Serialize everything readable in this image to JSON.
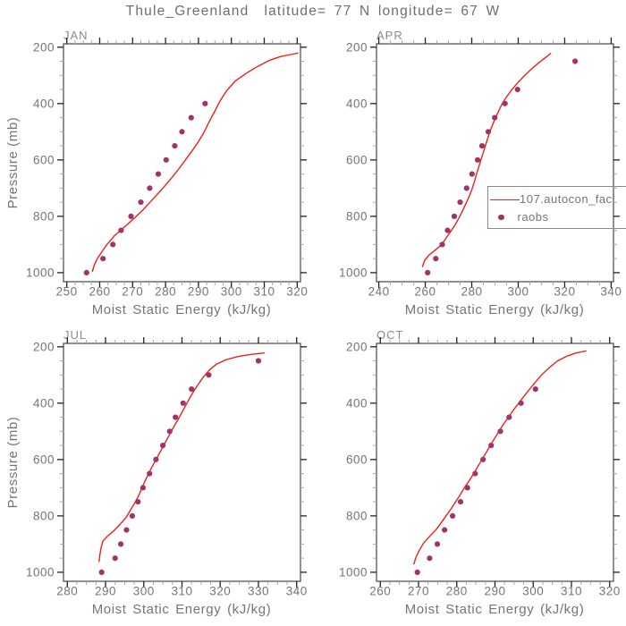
{
  "title": "Thule_Greenland  latitude= 77 N longitude= 67 W",
  "xlabel": "Moist Static Energy (kJ/kg)",
  "ylabel": "Pressure (mb)",
  "colors": {
    "model_line": "#ee2018",
    "raobs_dot": "#a23368",
    "frame": "#454545",
    "major_tick": "#222222",
    "minor_tick": "#a6a6a6",
    "label_text": "#757575"
  },
  "legend": {
    "entries": [
      {
        "label": "107.autocon_fac",
        "marker": "line"
      },
      {
        "label": "raobs",
        "marker": "dot"
      }
    ]
  },
  "chart_data": [
    {
      "panel": "JAN",
      "type": "line",
      "xlabel": "Moist Static Energy (kJ/kg)",
      "ylabel": "Pressure (mb)",
      "xlim": [
        249,
        321
      ],
      "xticks": [
        250,
        260,
        270,
        280,
        290,
        300,
        310,
        320
      ],
      "x_minor_step": 2.5,
      "ylim": [
        1032,
        188
      ],
      "yticks": [
        200,
        400,
        600,
        800,
        1000
      ],
      "y_minor_step": 50,
      "series": [
        {
          "name": "107.autocon_fac",
          "style": "line",
          "points": [
            [
              257.8,
              995
            ],
            [
              258.3,
              975
            ],
            [
              259.2,
              952
            ],
            [
              260.4,
              930
            ],
            [
              262.2,
              900
            ],
            [
              264.5,
              869
            ],
            [
              267.6,
              837
            ],
            [
              270.3,
              809
            ],
            [
              273.1,
              778
            ],
            [
              275.8,
              744
            ],
            [
              278.6,
              708
            ],
            [
              281.5,
              669
            ],
            [
              284.2,
              629
            ],
            [
              287.0,
              585
            ],
            [
              289.5,
              544
            ],
            [
              291.6,
              504
            ],
            [
              293.3,
              464
            ],
            [
              294.9,
              429
            ],
            [
              296.5,
              392
            ],
            [
              298.6,
              354
            ],
            [
              301.2,
              320
            ],
            [
              304.6,
              292
            ],
            [
              308.0,
              268
            ],
            [
              311.7,
              246
            ],
            [
              315.0,
              233
            ],
            [
              318.0,
              226
            ],
            [
              320.2,
              221
            ]
          ]
        },
        {
          "name": "raobs",
          "style": "dots",
          "points": [
            [
              256,
              1000
            ],
            [
              261,
              950
            ],
            [
              264,
              900
            ],
            [
              266.5,
              850
            ],
            [
              269.5,
              800
            ],
            [
              272.5,
              750
            ],
            [
              275.2,
              700
            ],
            [
              277.8,
              650
            ],
            [
              280.2,
              600
            ],
            [
              282.8,
              550
            ],
            [
              285,
              500
            ],
            [
              287.8,
              450
            ],
            [
              292,
              400
            ]
          ]
        }
      ]
    },
    {
      "panel": "APR",
      "type": "line",
      "xlabel": "Moist Static Energy (kJ/kg)",
      "ylabel": "Pressure (mb)",
      "xlim": [
        239,
        341
      ],
      "xticks": [
        240,
        260,
        280,
        300,
        320,
        340
      ],
      "x_minor_step": 5,
      "ylim": [
        1032,
        188
      ],
      "yticks": [
        200,
        400,
        600,
        800,
        1000
      ],
      "y_minor_step": 50,
      "series": [
        {
          "name": "107.autocon_fac",
          "style": "line",
          "points": [
            [
              258.8,
              978
            ],
            [
              259.8,
              956
            ],
            [
              261.5,
              938
            ],
            [
              264.3,
              920
            ],
            [
              267.0,
              901
            ],
            [
              269.0,
              877
            ],
            [
              271.1,
              852
            ],
            [
              273.0,
              828
            ],
            [
              274.7,
              803
            ],
            [
              276.2,
              778
            ],
            [
              277.6,
              753
            ],
            [
              278.9,
              729
            ],
            [
              280.1,
              704
            ],
            [
              281.1,
              678
            ],
            [
              282.0,
              652
            ],
            [
              283.0,
              626
            ],
            [
              283.9,
              600
            ],
            [
              284.9,
              576
            ],
            [
              285.8,
              551
            ],
            [
              286.8,
              526
            ],
            [
              287.7,
              502
            ],
            [
              288.9,
              477
            ],
            [
              290.2,
              451
            ],
            [
              291.6,
              426
            ],
            [
              293.1,
              400
            ],
            [
              295.0,
              376
            ],
            [
              297.2,
              351
            ],
            [
              299.7,
              327
            ],
            [
              302.6,
              302
            ],
            [
              305.6,
              278
            ],
            [
              308.6,
              257
            ],
            [
              311.2,
              240
            ],
            [
              313.0,
              229
            ],
            [
              313.9,
              222
            ]
          ]
        },
        {
          "name": "raobs",
          "style": "dots",
          "points": [
            [
              261,
              1000
            ],
            [
              264.5,
              950
            ],
            [
              267.3,
              900
            ],
            [
              269.6,
              850
            ],
            [
              272.5,
              800
            ],
            [
              275.0,
              750
            ],
            [
              277.8,
              700
            ],
            [
              280.1,
              650
            ],
            [
              282.5,
              600
            ],
            [
              284.4,
              550
            ],
            [
              287.1,
              500
            ],
            [
              289.9,
              450
            ],
            [
              294.3,
              400
            ],
            [
              299.7,
              350
            ],
            [
              324.5,
              250
            ]
          ]
        }
      ]
    },
    {
      "panel": "JUL",
      "type": "line",
      "xlabel": "Moist Static Energy (kJ/kg)",
      "ylabel": "Pressure (mb)",
      "xlim": [
        279,
        341
      ],
      "xticks": [
        280,
        290,
        300,
        310,
        320,
        330,
        340
      ],
      "x_minor_step": 2.5,
      "ylim": [
        1032,
        188
      ],
      "yticks": [
        200,
        400,
        600,
        800,
        1000
      ],
      "y_minor_step": 50,
      "series": [
        {
          "name": "107.autocon_fac",
          "style": "line",
          "points": [
            [
              288.3,
              962
            ],
            [
              288.5,
              940
            ],
            [
              288.8,
              915
            ],
            [
              289.3,
              890
            ],
            [
              290.5,
              872
            ],
            [
              292.0,
              855
            ],
            [
              293.8,
              830
            ],
            [
              295.4,
              805
            ],
            [
              296.5,
              780
            ],
            [
              297.6,
              755
            ],
            [
              298.6,
              730
            ],
            [
              299.4,
              705
            ],
            [
              300.2,
              680
            ],
            [
              301.1,
              655
            ],
            [
              302.0,
              630
            ],
            [
              303.0,
              605
            ],
            [
              304.0,
              580
            ],
            [
              305.0,
              555
            ],
            [
              306.0,
              530
            ],
            [
              307.0,
              505
            ],
            [
              308.0,
              480
            ],
            [
              309.1,
              455
            ],
            [
              310.1,
              430
            ],
            [
              311.1,
              405
            ],
            [
              312.1,
              380
            ],
            [
              313.2,
              355
            ],
            [
              314.4,
              330
            ],
            [
              315.7,
              305
            ],
            [
              317.2,
              282
            ],
            [
              319.0,
              262
            ],
            [
              321.5,
              246
            ],
            [
              324.5,
              235
            ],
            [
              328.0,
              227
            ],
            [
              331.5,
              222
            ]
          ]
        },
        {
          "name": "raobs",
          "style": "dots",
          "points": [
            [
              289,
              1000
            ],
            [
              292.5,
              950
            ],
            [
              294,
              900
            ],
            [
              295.5,
              850
            ],
            [
              297,
              800
            ],
            [
              298.5,
              750
            ],
            [
              299.8,
              700
            ],
            [
              301.5,
              650
            ],
            [
              303.2,
              600
            ],
            [
              305,
              550
            ],
            [
              306.8,
              500
            ],
            [
              308.3,
              450
            ],
            [
              310.3,
              400
            ],
            [
              312.5,
              350
            ],
            [
              317,
              300
            ],
            [
              330,
              250
            ]
          ]
        }
      ]
    },
    {
      "panel": "OCT",
      "type": "line",
      "xlabel": "Moist Static Energy (kJ/kg)",
      "ylabel": "Pressure (mb)",
      "xlim": [
        259,
        321
      ],
      "xticks": [
        260,
        270,
        280,
        290,
        300,
        310,
        320
      ],
      "x_minor_step": 2.5,
      "ylim": [
        1032,
        188
      ],
      "yticks": [
        200,
        400,
        600,
        800,
        1000
      ],
      "y_minor_step": 50,
      "series": [
        {
          "name": "107.autocon_fac",
          "style": "line",
          "points": [
            [
              268.8,
              970
            ],
            [
              269.3,
              948
            ],
            [
              270.2,
              922
            ],
            [
              271.4,
              895
            ],
            [
              273.0,
              871
            ],
            [
              274.7,
              847
            ],
            [
              276.0,
              823
            ],
            [
              277.3,
              798
            ],
            [
              278.6,
              773
            ],
            [
              279.8,
              748
            ],
            [
              281.0,
              723
            ],
            [
              282.1,
              698
            ],
            [
              283.3,
              674
            ],
            [
              284.4,
              650
            ],
            [
              285.5,
              625
            ],
            [
              286.6,
              600
            ],
            [
              287.7,
              575
            ],
            [
              288.8,
              549
            ],
            [
              289.9,
              525
            ],
            [
              291.0,
              500
            ],
            [
              292.2,
              475
            ],
            [
              293.5,
              450
            ],
            [
              294.8,
              425
            ],
            [
              296.2,
              400
            ],
            [
              297.6,
              375
            ],
            [
              299.1,
              350
            ],
            [
              300.6,
              325
            ],
            [
              302.2,
              300
            ],
            [
              304.2,
              274
            ],
            [
              306.4,
              250
            ],
            [
              308.8,
              233
            ],
            [
              311.2,
              222
            ],
            [
              313.8,
              215
            ]
          ]
        },
        {
          "name": "raobs",
          "style": "dots",
          "points": [
            [
              269.7,
              1000
            ],
            [
              272.9,
              950
            ],
            [
              274.9,
              900
            ],
            [
              276.8,
              850
            ],
            [
              278.9,
              800
            ],
            [
              281.0,
              750
            ],
            [
              282.8,
              700
            ],
            [
              284.8,
              650
            ],
            [
              286.9,
              600
            ],
            [
              289.0,
              550
            ],
            [
              291.4,
              500
            ],
            [
              293.7,
              450
            ],
            [
              296.8,
              400
            ],
            [
              300.6,
              350
            ]
          ]
        }
      ]
    }
  ]
}
